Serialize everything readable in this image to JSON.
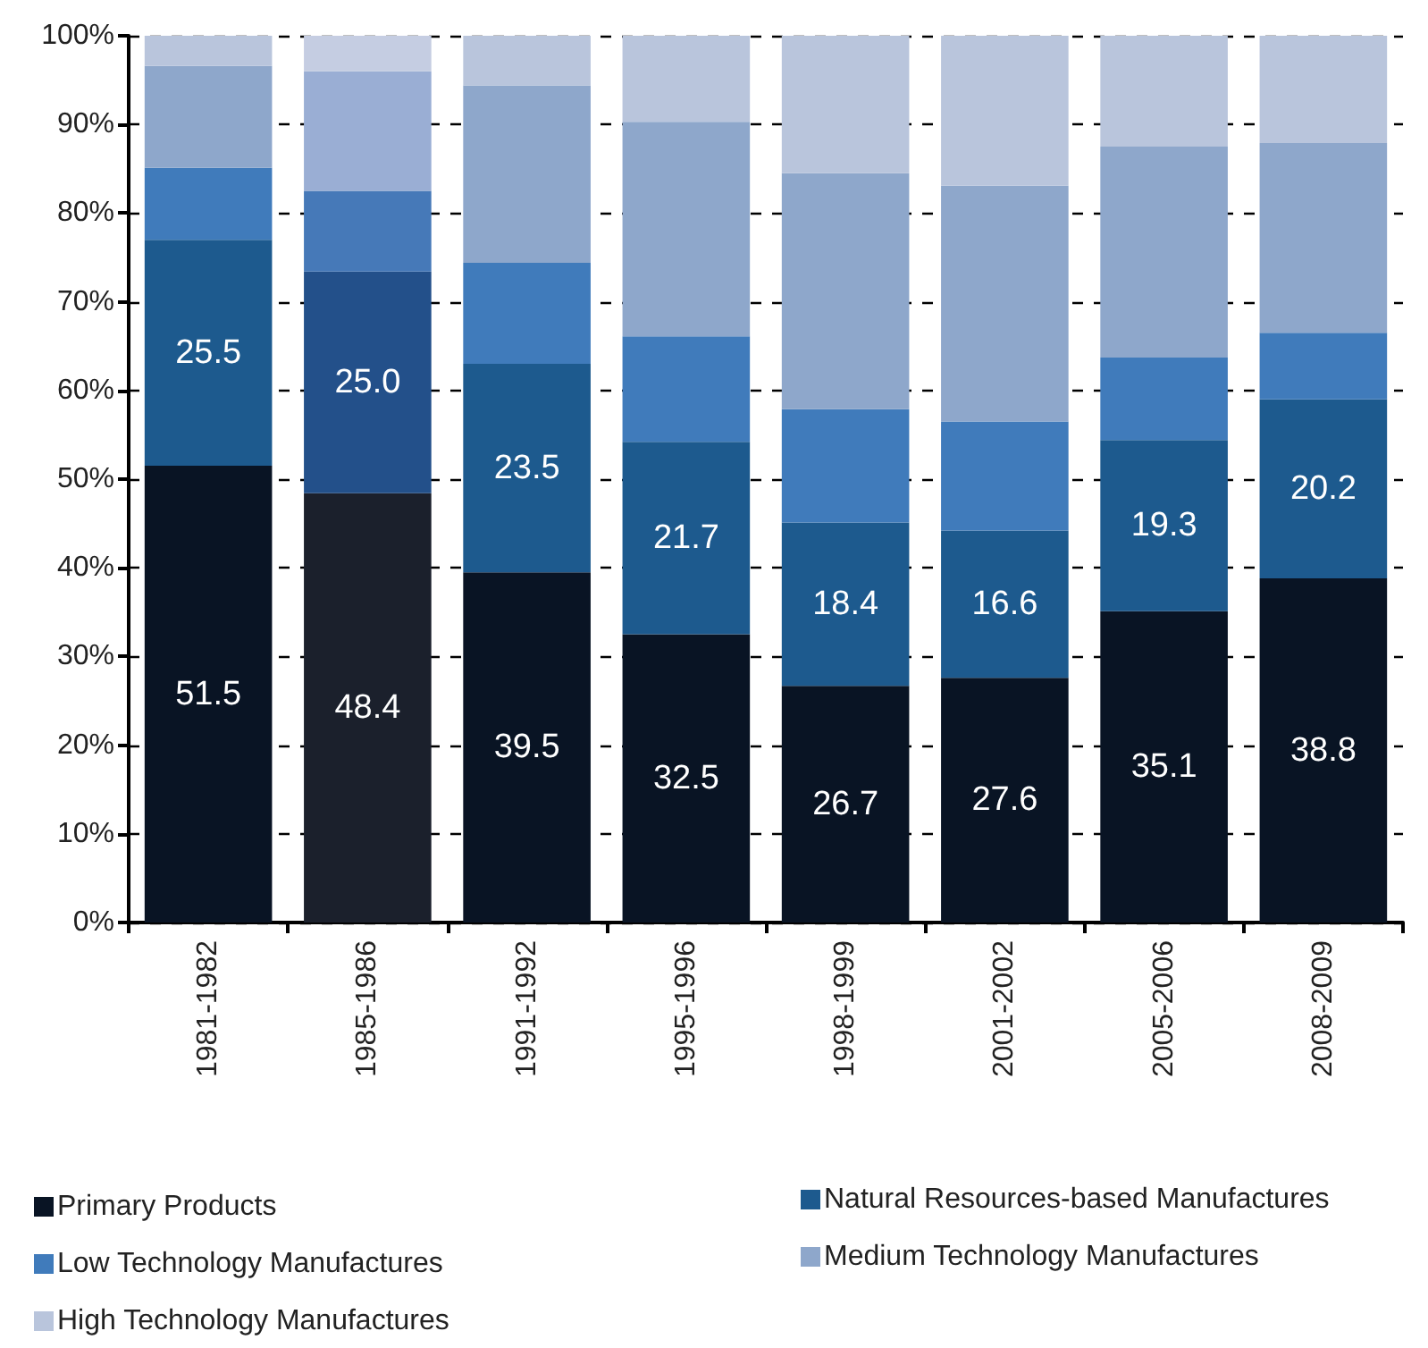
{
  "chart_data": {
    "type": "bar",
    "stacked": true,
    "categories": [
      "1981-1982",
      "1985-1986",
      "1991-1992",
      "1995-1996",
      "1998-1999",
      "2001-2002",
      "2005-2006",
      "2008-2009"
    ],
    "series": [
      {
        "name": "Primary Products",
        "color": "#091424",
        "colors": [
          "#091424",
          "#1b202c",
          "#091424",
          "#091424",
          "#091424",
          "#091424",
          "#091424",
          "#091424"
        ],
        "values": [
          51.5,
          48.4,
          39.5,
          32.5,
          26.7,
          27.6,
          35.1,
          38.8
        ],
        "value_labels": [
          "51.5",
          "48.4",
          "39.5",
          "32.5",
          "26.7",
          "27.6",
          "35.1",
          "38.8"
        ]
      },
      {
        "name": "Natural Resources-based Manufactures",
        "color": "#1d5a8e",
        "colors": [
          "#1d5a8e",
          "#23508a",
          "#1d5a8e",
          "#1d5a8e",
          "#1d5a8e",
          "#1d5a8e",
          "#1d5a8e",
          "#1d5a8e"
        ],
        "values": [
          25.5,
          25.0,
          23.5,
          21.7,
          18.4,
          16.6,
          19.3,
          20.2
        ],
        "value_labels": [
          "25.5",
          "25.0",
          "23.5",
          "21.7",
          "18.4",
          "16.6",
          "19.3",
          "20.2"
        ]
      },
      {
        "name": "Low Technology Manufactures",
        "color": "#407bbb",
        "colors": [
          "#407bbb",
          "#4679b8",
          "#407bbb",
          "#407bbb",
          "#407bbb",
          "#407bbb",
          "#407bbb",
          "#407bbb"
        ],
        "values": [
          8.1,
          9.1,
          11.4,
          11.9,
          12.8,
          12.3,
          9.3,
          7.5
        ]
      },
      {
        "name": "Medium Technology Manufactures",
        "color": "#8ea7cb",
        "colors": [
          "#8ea7cb",
          "#9aaed4",
          "#8ea7cb",
          "#8ea7cb",
          "#8ea7cb",
          "#8ea7cb",
          "#8ea7cb",
          "#8ea7cb"
        ],
        "values": [
          11.5,
          13.5,
          20.0,
          24.2,
          26.6,
          26.6,
          23.8,
          21.4
        ]
      },
      {
        "name": "High Technology Manufactures",
        "color": "#b9c5dc",
        "colors": [
          "#b9c5dc",
          "#c5cde2",
          "#b9c5dc",
          "#b9c5dc",
          "#b9c5dc",
          "#b9c5dc",
          "#b9c5dc",
          "#b9c5dc"
        ],
        "values": [
          3.4,
          4.0,
          5.6,
          9.7,
          15.5,
          16.9,
          12.5,
          12.1
        ]
      }
    ],
    "ylim": [
      0,
      100
    ],
    "yticks": [
      {
        "value": 0,
        "label": "0%"
      },
      {
        "value": 10,
        "label": "10%"
      },
      {
        "value": 20,
        "label": "20%"
      },
      {
        "value": 30,
        "label": "30%"
      },
      {
        "value": 40,
        "label": "40%"
      },
      {
        "value": 50,
        "label": "50%"
      },
      {
        "value": 60,
        "label": "60%"
      },
      {
        "value": 70,
        "label": "70%"
      },
      {
        "value": 80,
        "label": "80%"
      },
      {
        "value": 90,
        "label": "90%"
      },
      {
        "value": 100,
        "label": "100%"
      }
    ],
    "grid": "y",
    "legend": "bottom"
  }
}
